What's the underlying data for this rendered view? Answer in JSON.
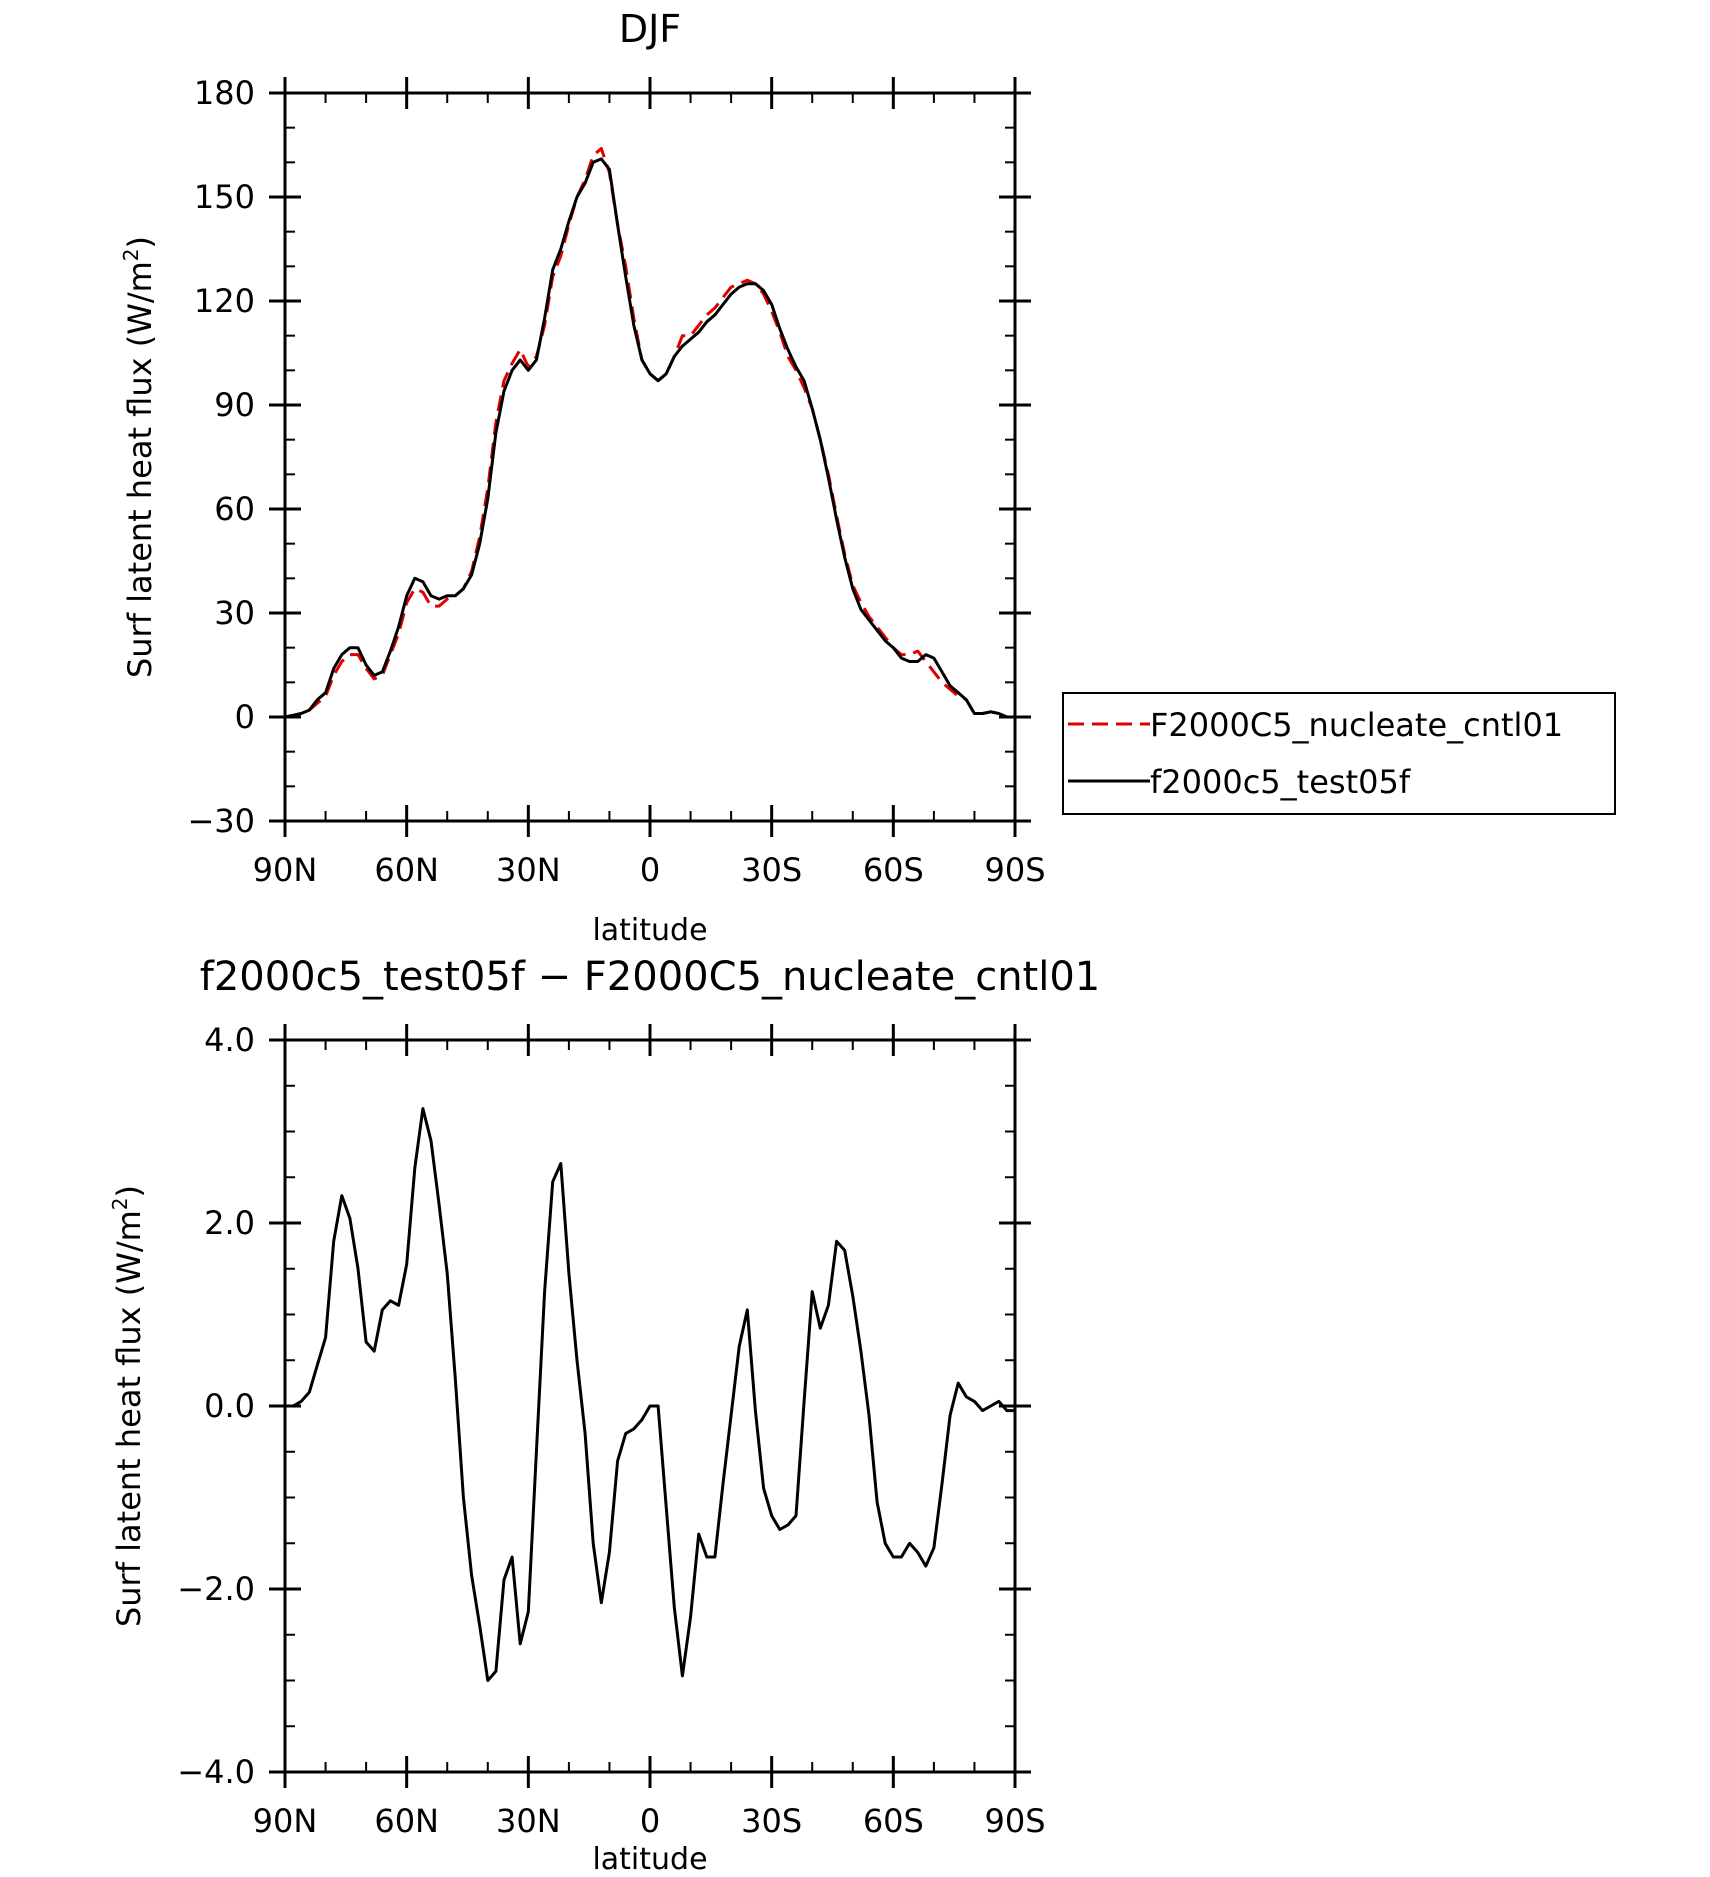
{
  "chart_data": [
    {
      "type": "line",
      "title": "DJF",
      "xlabel": "latitude",
      "ylabel": "Surf latent heat flux (W/m",
      "ylabel_sup": "2",
      "ylabel_close": ")",
      "xlim": [
        -90,
        90
      ],
      "ylim": [
        -30,
        180
      ],
      "x_direction": "from 90N at left to 90S at right",
      "xtick_values": [
        90,
        60,
        30,
        0,
        -30,
        -60,
        -90
      ],
      "xtick_labels": [
        "90N",
        "60N",
        "30N",
        "0",
        "30S",
        "60S",
        "90S"
      ],
      "ytick_values": [
        -30,
        0,
        30,
        60,
        90,
        120,
        150,
        180
      ],
      "ytick_labels": [
        "−30",
        "0",
        "30",
        "60",
        "90",
        "120",
        "150",
        "180"
      ],
      "grid": false,
      "legend_position": "right, outside the plot",
      "x": [
        90,
        88,
        86,
        84,
        82,
        80,
        78,
        76,
        74,
        72,
        70,
        68,
        66,
        64,
        62,
        60,
        58,
        56,
        54,
        52,
        50,
        48,
        46,
        44,
        42,
        40,
        38,
        36,
        34,
        32,
        30,
        28,
        26,
        24,
        22,
        20,
        18,
        16,
        14,
        12,
        10,
        8,
        6,
        4,
        2,
        0,
        -2,
        -4,
        -6,
        -8,
        -10,
        -12,
        -14,
        -16,
        -18,
        -20,
        -22,
        -24,
        -26,
        -28,
        -30,
        -32,
        -34,
        -36,
        -38,
        -40,
        -42,
        -44,
        -46,
        -48,
        -50,
        -52,
        -54,
        -56,
        -58,
        -60,
        -62,
        -64,
        -66,
        -68,
        -70,
        -72,
        -74,
        -76,
        -78,
        -80,
        -82,
        -84,
        -86,
        -88,
        -90
      ],
      "series": [
        {
          "name": "F2000C5_nucleate_cntl01",
          "color": "#e00000",
          "dash": "dashed",
          "values": [
            0,
            0.5,
            1,
            2,
            4,
            6,
            12,
            16,
            18,
            18,
            14,
            11,
            12,
            18,
            24,
            33,
            37,
            36,
            32,
            32,
            34,
            35,
            37,
            42,
            52,
            66,
            85,
            97,
            102,
            106,
            101,
            104,
            113,
            127,
            133,
            142,
            150,
            155,
            162,
            164,
            157,
            142,
            130,
            115,
            103,
            99,
            97,
            99,
            104,
            110,
            110,
            113,
            116,
            118,
            121,
            124,
            125,
            126,
            125,
            122,
            117,
            111,
            104,
            100,
            95,
            89,
            80,
            70,
            58,
            47,
            38,
            33,
            29,
            26,
            23,
            20,
            18,
            18,
            19,
            16,
            13,
            10,
            8,
            6,
            5,
            1,
            1,
            1.5,
            1,
            0,
            0
          ]
        },
        {
          "name": "f2000c5_test05f",
          "color": "#000000",
          "dash": "solid",
          "values": [
            0,
            0.5,
            1,
            2,
            5,
            7,
            14,
            18,
            20,
            20,
            15,
            12,
            13,
            19,
            26,
            35,
            40,
            39,
            35,
            34,
            35,
            35,
            37,
            41,
            50,
            63,
            82,
            94,
            100,
            103,
            100,
            103,
            115,
            129,
            135,
            143,
            150,
            154,
            160,
            161,
            158,
            142,
            127,
            113,
            103,
            99,
            97,
            99,
            104,
            107,
            109,
            111,
            114,
            116,
            119,
            122,
            124,
            125,
            125,
            123,
            119,
            112,
            106,
            101,
            97,
            89,
            80,
            69,
            57,
            46,
            37,
            31,
            28,
            25,
            22,
            20,
            17,
            16,
            16,
            18,
            17,
            13,
            9,
            7,
            5,
            1,
            1,
            1.5,
            1,
            0,
            0
          ]
        }
      ]
    },
    {
      "type": "line",
      "title": "f2000c5_test05f − F2000C5_nucleate_cntl01",
      "xlabel": "latitude",
      "ylabel": "Surf latent heat flux (W/m",
      "ylabel_sup": "2",
      "ylabel_close": ")",
      "xlim": [
        -90,
        90
      ],
      "ylim": [
        -4,
        4
      ],
      "x_direction": "from 90N at left to 90S at right",
      "xtick_values": [
        90,
        60,
        30,
        0,
        -30,
        -60,
        -90
      ],
      "xtick_labels": [
        "90N",
        "60N",
        "30N",
        "0",
        "30S",
        "60S",
        "90S"
      ],
      "ytick_values": [
        -4,
        -2,
        0,
        2,
        4
      ],
      "ytick_labels": [
        "−4.0",
        "−2.0",
        "0.0",
        "2.0",
        "4.0"
      ],
      "grid": false,
      "x": [
        90,
        88,
        86,
        84,
        82,
        80,
        78,
        76,
        74,
        72,
        70,
        68,
        66,
        64,
        62,
        60,
        58,
        56,
        54,
        52,
        50,
        48,
        46,
        44,
        42,
        40,
        38,
        36,
        34,
        32,
        30,
        28,
        26,
        24,
        22,
        20,
        18,
        16,
        14,
        12,
        10,
        8,
        6,
        4,
        2,
        0,
        -2,
        -4,
        -6,
        -8,
        -10,
        -12,
        -14,
        -16,
        -18,
        -20,
        -22,
        -24,
        -26,
        -28,
        -30,
        -32,
        -34,
        -36,
        -38,
        -40,
        -42,
        -44,
        -46,
        -48,
        -50,
        -52,
        -54,
        -56,
        -58,
        -60,
        -62,
        -64,
        -66,
        -68,
        -70,
        -72,
        -74,
        -76,
        -78,
        -80,
        -82,
        -84,
        -86,
        -88,
        -90
      ],
      "series": [
        {
          "name": "",
          "color": "#000000",
          "dash": "solid",
          "values": [
            0,
            0,
            0.05,
            0.15,
            0.45,
            0.75,
            1.8,
            2.3,
            2.05,
            1.5,
            0.7,
            0.6,
            1.05,
            1.15,
            1.1,
            1.55,
            2.6,
            3.25,
            2.9,
            2.2,
            1.45,
            0.3,
            -1.0,
            -1.85,
            -2.4,
            -3.0,
            -2.9,
            -1.9,
            -1.65,
            -2.6,
            -2.25,
            -0.5,
            1.25,
            2.45,
            2.65,
            1.45,
            0.5,
            -0.3,
            -1.5,
            -2.15,
            -1.6,
            -0.6,
            -0.3,
            -0.25,
            -0.15,
            0,
            0,
            -1.1,
            -2.2,
            -2.95,
            -2.3,
            -1.4,
            -1.65,
            -1.65,
            -0.85,
            -0.1,
            0.65,
            1.05,
            -0.05,
            -0.9,
            -1.2,
            -1.35,
            -1.3,
            -1.2,
            0.05,
            1.25,
            0.85,
            1.1,
            1.8,
            1.7,
            1.2,
            0.6,
            -0.1,
            -1.05,
            -1.5,
            -1.65,
            -1.65,
            -1.5,
            -1.6,
            -1.75,
            -1.55,
            -0.85,
            -0.1,
            0.25,
            0.1,
            0.05,
            -0.05,
            0,
            0.05,
            -0.05,
            -0.05
          ]
        }
      ]
    }
  ]
}
